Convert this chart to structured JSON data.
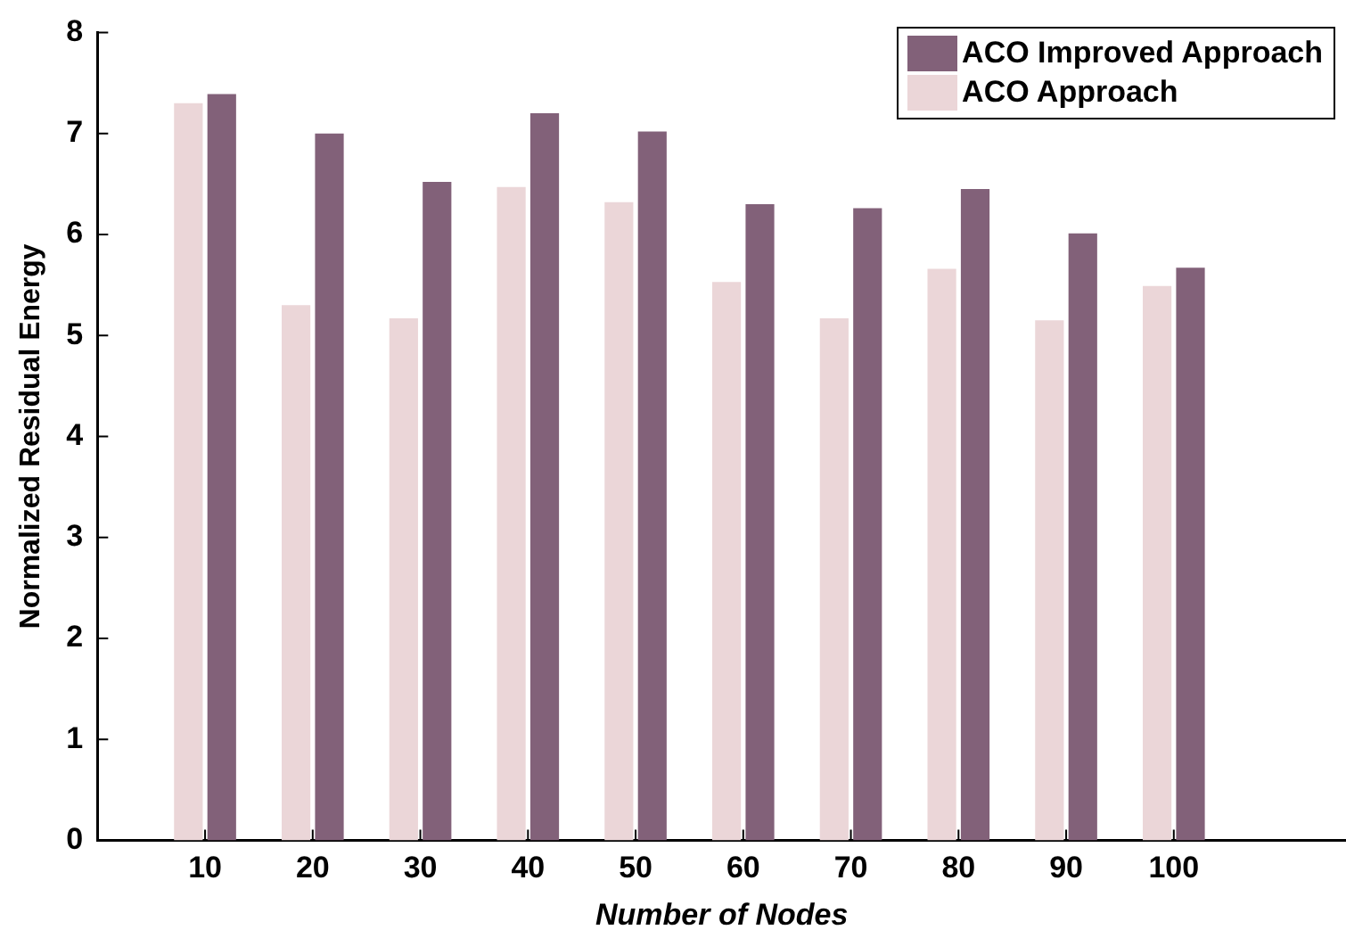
{
  "chart_data": {
    "type": "bar",
    "xlabel": "Number of Nodes",
    "ylabel": "Normalized Residual Energy",
    "x": [
      10,
      20,
      30,
      40,
      50,
      60,
      70,
      80,
      90,
      100
    ],
    "series": [
      {
        "name": "ACO Approach",
        "color": "#ebd6d8",
        "values": [
          7.3,
          5.3,
          5.17,
          6.47,
          6.32,
          5.53,
          5.17,
          5.66,
          5.15,
          5.49
        ]
      },
      {
        "name": "ACO Improved Approach",
        "color": "#826179",
        "values": [
          7.39,
          7.0,
          6.52,
          7.2,
          7.02,
          6.3,
          6.26,
          6.45,
          6.01,
          5.67
        ]
      }
    ],
    "xlim": [
      0,
      116
    ],
    "xticks": [
      10,
      20,
      30,
      40,
      50,
      60,
      70,
      80,
      90,
      100
    ],
    "ylim": [
      0,
      8
    ],
    "yticks": [
      0,
      1,
      2,
      3,
      4,
      5,
      6,
      7,
      8
    ],
    "grid": false,
    "legend": "top right"
  }
}
